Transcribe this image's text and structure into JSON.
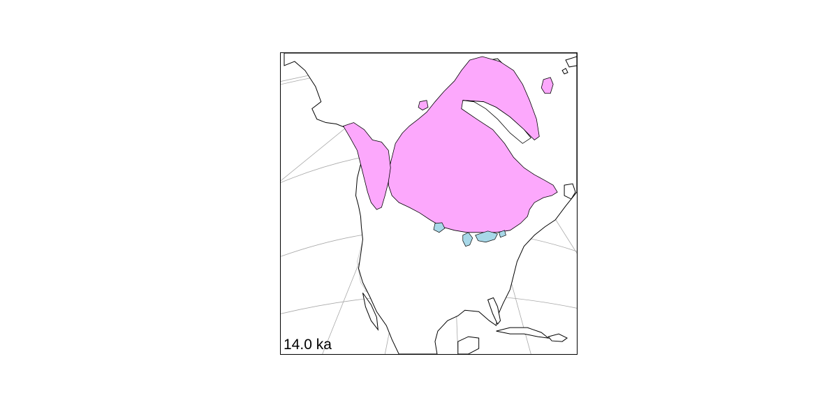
{
  "map": {
    "time_label": "14.0 ka",
    "colors": {
      "ice_sheet": "#fca8fc",
      "proglacial_lake": "#a8d8e8",
      "coastline": "#000000",
      "graticule": "#a8a8a8",
      "political_borders": "#c8c8c8",
      "background": "#ffffff"
    },
    "layers": [
      "graticule",
      "political-borders",
      "coastline",
      "ice-sheet",
      "proglacial-lakes"
    ]
  }
}
